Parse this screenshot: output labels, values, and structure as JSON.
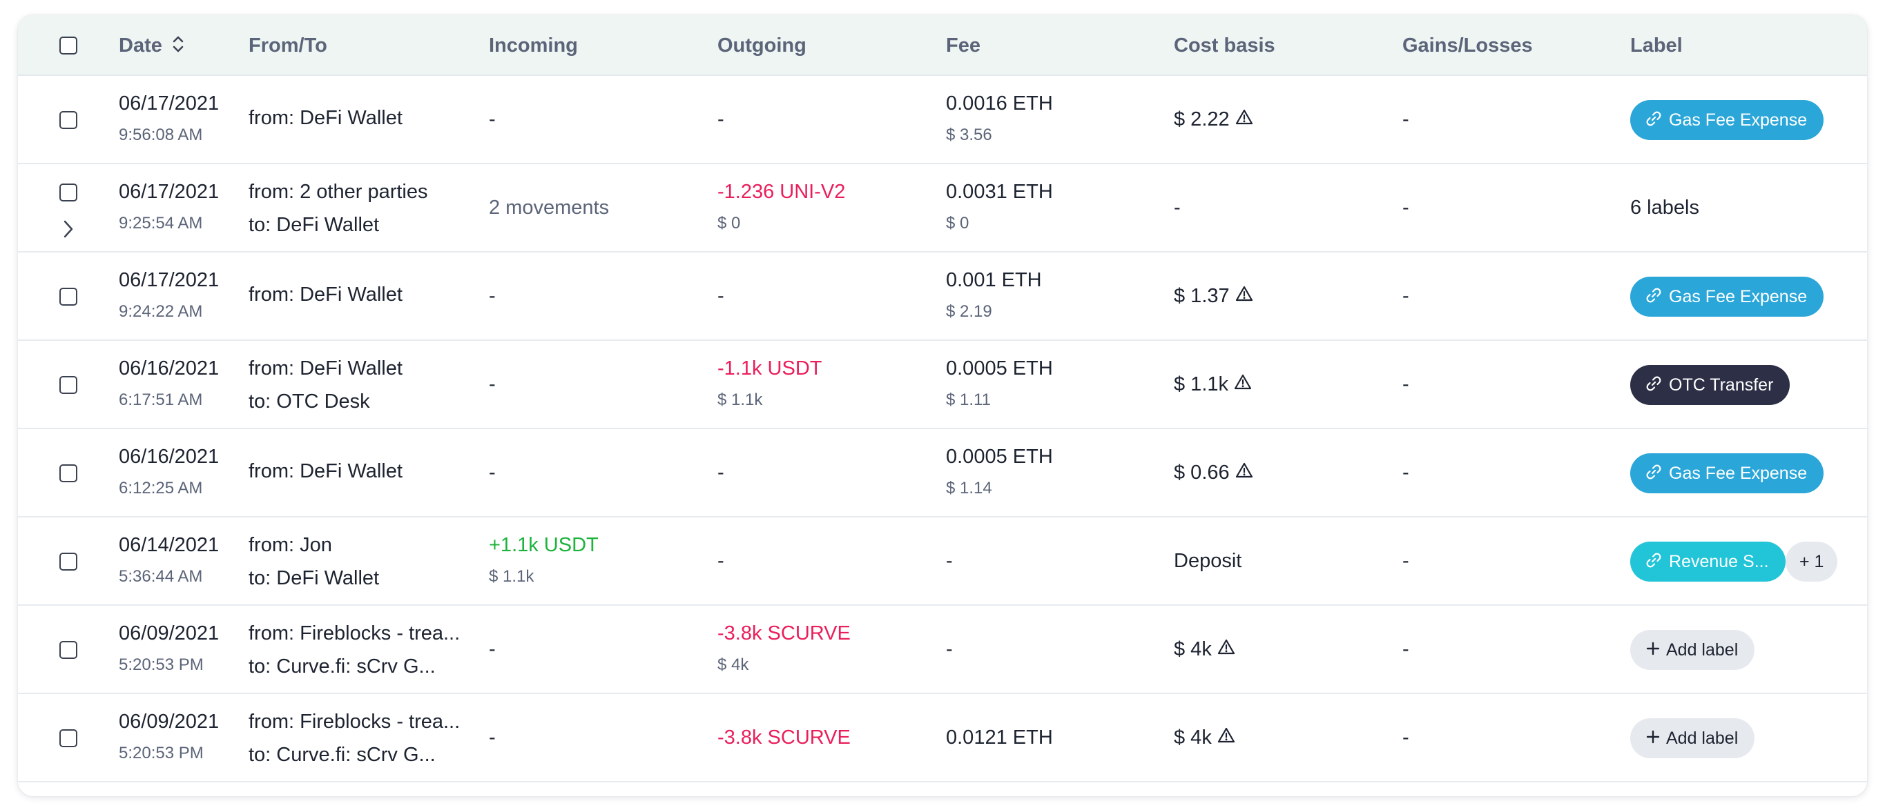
{
  "header": {
    "date": "Date",
    "from_to": "From/To",
    "incoming": "Incoming",
    "outgoing": "Outgoing",
    "fee": "Fee",
    "cost_basis": "Cost basis",
    "gains_losses": "Gains/Losses",
    "label": "Label"
  },
  "colors": {
    "header_bg": "#eef5f3",
    "negative": "#ea1e5b",
    "positive": "#1db33c",
    "label_gas_fee": "#2aa6d9",
    "label_revenue": "#22c4d8",
    "label_otc": "#2c2f45"
  },
  "rows": [
    {
      "date": "06/17/2021",
      "time": "9:56:08 AM",
      "from": "from: DeFi Wallet",
      "to": "",
      "incoming": "-",
      "incoming_sub": "",
      "outgoing": "-",
      "outgoing_sub": "",
      "fee": "0.0016 ETH",
      "fee_sub": "$ 3.56",
      "cost_basis": "$ 2.22",
      "cost_warning": true,
      "gains": "-",
      "label": "Gas Fee Expense",
      "label_icon": "link-icon"
    },
    {
      "date": "06/17/2021",
      "time": "9:25:54 AM",
      "from": "from: 2 other parties",
      "to": "to: DeFi Wallet",
      "incoming": "2 movements",
      "incoming_sub": "",
      "outgoing": "-1.236 UNI-V2",
      "outgoing_sub": "$ 0",
      "fee": "0.0031 ETH",
      "fee_sub": "$ 0",
      "cost_basis": "-",
      "cost_warning": false,
      "gains": "-",
      "label": "6 labels"
    },
    {
      "date": "06/17/2021",
      "time": "9:24:22 AM",
      "from": "from: DeFi Wallet",
      "to": "",
      "incoming": "-",
      "incoming_sub": "",
      "outgoing": "-",
      "outgoing_sub": "",
      "fee": "0.001 ETH",
      "fee_sub": "$ 2.19",
      "cost_basis": "$ 1.37",
      "cost_warning": true,
      "gains": "-",
      "label": "Gas Fee Expense",
      "label_icon": "link-icon"
    },
    {
      "date": "06/16/2021",
      "time": "6:17:51 AM",
      "from": "from: DeFi Wallet",
      "to": "to: OTC Desk",
      "incoming": "-",
      "incoming_sub": "",
      "outgoing": "-1.1k USDT",
      "outgoing_sub": "$ 1.1k",
      "fee": "0.0005 ETH",
      "fee_sub": "$ 1.11",
      "cost_basis": "$ 1.1k",
      "cost_warning": true,
      "gains": "-",
      "label": "OTC Transfer",
      "label_icon": "link-icon"
    },
    {
      "date": "06/16/2021",
      "time": "6:12:25 AM",
      "from": "from: DeFi Wallet",
      "to": "",
      "incoming": "-",
      "incoming_sub": "",
      "outgoing": "-",
      "outgoing_sub": "",
      "fee": "0.0005 ETH",
      "fee_sub": "$ 1.14",
      "cost_basis": "$ 0.66",
      "cost_warning": true,
      "gains": "-",
      "label": "Gas Fee Expense",
      "label_icon": "link-icon"
    },
    {
      "date": "06/14/2021",
      "time": "5:36:44 AM",
      "from": "from: Jon",
      "to": "to: DeFi Wallet",
      "incoming": "+1.1k USDT",
      "incoming_sub": "$ 1.1k",
      "outgoing": "-",
      "outgoing_sub": "",
      "fee": "-",
      "fee_sub": "",
      "cost_basis": "Deposit",
      "cost_warning": false,
      "gains": "-",
      "label": "Revenue S...",
      "label_icon": "link-icon",
      "label_extra": "+ 1"
    },
    {
      "date": "06/09/2021",
      "time": "5:20:53 PM",
      "from": "from: Fireblocks - trea...",
      "to": "to: Curve.fi: sCrv G...",
      "incoming": "-",
      "incoming_sub": "",
      "outgoing": "-3.8k SCURVE",
      "outgoing_sub": "$ 4k",
      "fee": "-",
      "fee_sub": "",
      "cost_basis": "$ 4k",
      "cost_warning": true,
      "gains": "-",
      "label": "Add label",
      "label_icon": "plus-icon"
    },
    {
      "date": "06/09/2021",
      "time": "5:20:53 PM",
      "from": "from: Fireblocks - trea...",
      "to": "to: Curve.fi: sCrv G...",
      "incoming": "-",
      "incoming_sub": "",
      "outgoing": "-3.8k SCURVE",
      "outgoing_sub": "",
      "fee": "0.0121 ETH",
      "fee_sub": "",
      "cost_basis": "$ 4k",
      "cost_warning": true,
      "gains": "-",
      "label": "Add label",
      "label_icon": "plus-icon"
    }
  ]
}
